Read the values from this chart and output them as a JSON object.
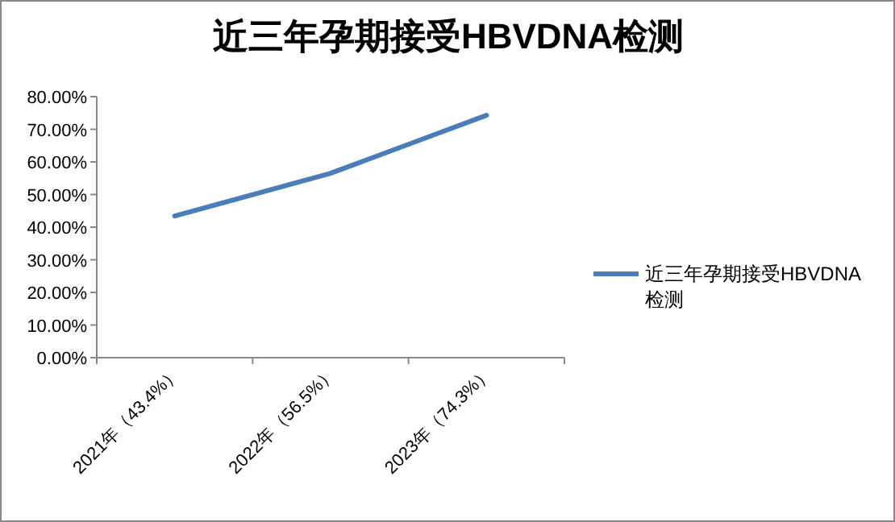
{
  "chart_data": {
    "type": "line",
    "title": "近三年孕期接受HBVDNA检测",
    "categories": [
      "2021年（43.4%）",
      "2022年（56.5%）",
      "2023年（74.3%）"
    ],
    "series": [
      {
        "name": "近三年孕期接受HBVDNA检测",
        "color": "#4a7ebb",
        "values": [
          43.4,
          56.5,
          74.3
        ]
      }
    ],
    "ylim": [
      0,
      80
    ],
    "yticks": [
      {
        "value": 0,
        "label": "0.00%"
      },
      {
        "value": 10,
        "label": "10.00%"
      },
      {
        "value": 20,
        "label": "20.00%"
      },
      {
        "value": 30,
        "label": "30.00%"
      },
      {
        "value": 40,
        "label": "40.00%"
      },
      {
        "value": 50,
        "label": "50.00%"
      },
      {
        "value": 60,
        "label": "60.00%"
      },
      {
        "value": 70,
        "label": "70.00%"
      },
      {
        "value": 80,
        "label": "80.00%"
      }
    ],
    "grid": false,
    "legend": "right",
    "marker": "none",
    "line_style": "solid"
  }
}
